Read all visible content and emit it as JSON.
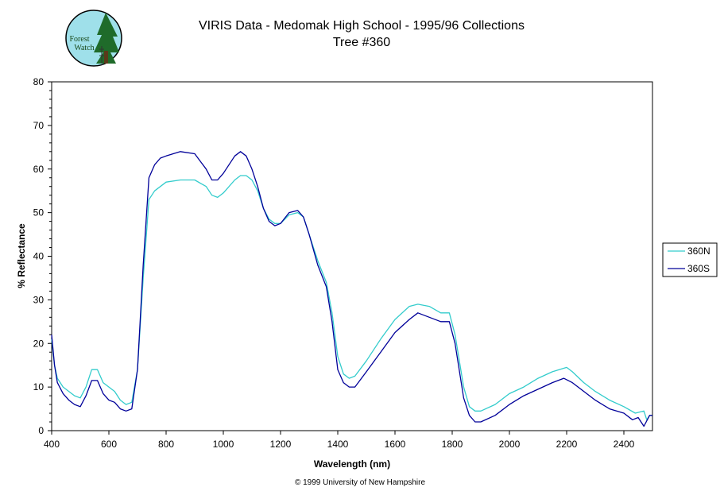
{
  "logo": {
    "text_line1": "Forest",
    "text_line2": "Watch"
  },
  "footer": {
    "copyright": "© 1999 University of New Hampshire"
  },
  "chart_data": {
    "type": "line",
    "title": "VIRIS Data - Medomak High School - 1995/96 Collections",
    "subtitle": "Tree #360",
    "xlabel": "Wavelength (nm)",
    "ylabel": "% Reflectance",
    "xlim": [
      400,
      2500
    ],
    "ylim": [
      0,
      80
    ],
    "xticks": [
      400,
      600,
      800,
      1000,
      1200,
      1400,
      1600,
      1800,
      2000,
      2200,
      2400
    ],
    "yticks": [
      0,
      10,
      20,
      30,
      40,
      50,
      60,
      70,
      80
    ],
    "grid": false,
    "legend_position": "right",
    "series": [
      {
        "name": "360N",
        "color": "#33CCCC",
        "points": [
          [
            400,
            21
          ],
          [
            410,
            15
          ],
          [
            420,
            12
          ],
          [
            440,
            10
          ],
          [
            460,
            9
          ],
          [
            480,
            8
          ],
          [
            500,
            7.5
          ],
          [
            520,
            10
          ],
          [
            540,
            14
          ],
          [
            560,
            14
          ],
          [
            580,
            11
          ],
          [
            600,
            10
          ],
          [
            620,
            9
          ],
          [
            640,
            7
          ],
          [
            660,
            6
          ],
          [
            680,
            6.5
          ],
          [
            700,
            14
          ],
          [
            720,
            35
          ],
          [
            740,
            53
          ],
          [
            760,
            55
          ],
          [
            780,
            56
          ],
          [
            800,
            57
          ],
          [
            850,
            57.5
          ],
          [
            900,
            57.5
          ],
          [
            940,
            56
          ],
          [
            960,
            54
          ],
          [
            980,
            53.5
          ],
          [
            1000,
            54.5
          ],
          [
            1040,
            57.5
          ],
          [
            1060,
            58.5
          ],
          [
            1080,
            58.5
          ],
          [
            1100,
            57.5
          ],
          [
            1120,
            55
          ],
          [
            1140,
            51
          ],
          [
            1160,
            48.5
          ],
          [
            1180,
            47.5
          ],
          [
            1200,
            47.5
          ],
          [
            1230,
            49.5
          ],
          [
            1260,
            50
          ],
          [
            1280,
            49
          ],
          [
            1300,
            45
          ],
          [
            1330,
            39
          ],
          [
            1360,
            34
          ],
          [
            1380,
            27
          ],
          [
            1400,
            17
          ],
          [
            1420,
            13
          ],
          [
            1440,
            12
          ],
          [
            1460,
            12.5
          ],
          [
            1500,
            16
          ],
          [
            1550,
            21
          ],
          [
            1600,
            25.5
          ],
          [
            1650,
            28.5
          ],
          [
            1680,
            29
          ],
          [
            1720,
            28.5
          ],
          [
            1760,
            27
          ],
          [
            1790,
            27
          ],
          [
            1810,
            22
          ],
          [
            1840,
            10
          ],
          [
            1860,
            5.5
          ],
          [
            1880,
            4.5
          ],
          [
            1900,
            4.5
          ],
          [
            1950,
            6
          ],
          [
            2000,
            8.5
          ],
          [
            2050,
            10
          ],
          [
            2100,
            12
          ],
          [
            2150,
            13.5
          ],
          [
            2200,
            14.5
          ],
          [
            2220,
            13.5
          ],
          [
            2260,
            11
          ],
          [
            2300,
            9
          ],
          [
            2350,
            7
          ],
          [
            2400,
            5.5
          ],
          [
            2440,
            4
          ],
          [
            2470,
            4.5
          ],
          [
            2480,
            2.5
          ],
          [
            2490,
            3.5
          ],
          [
            2500,
            3.5
          ]
        ]
      },
      {
        "name": "360S",
        "color": "#000099",
        "points": [
          [
            400,
            22
          ],
          [
            410,
            15
          ],
          [
            420,
            11
          ],
          [
            440,
            8.5
          ],
          [
            460,
            7
          ],
          [
            480,
            6
          ],
          [
            500,
            5.5
          ],
          [
            520,
            8
          ],
          [
            540,
            11.5
          ],
          [
            560,
            11.5
          ],
          [
            580,
            8.5
          ],
          [
            600,
            7
          ],
          [
            620,
            6.5
          ],
          [
            640,
            5
          ],
          [
            660,
            4.5
          ],
          [
            680,
            5
          ],
          [
            700,
            14
          ],
          [
            720,
            38
          ],
          [
            740,
            58
          ],
          [
            760,
            61
          ],
          [
            780,
            62.5
          ],
          [
            800,
            63
          ],
          [
            850,
            64
          ],
          [
            900,
            63.5
          ],
          [
            940,
            60
          ],
          [
            960,
            57.5
          ],
          [
            980,
            57.5
          ],
          [
            1000,
            59
          ],
          [
            1040,
            63
          ],
          [
            1060,
            64
          ],
          [
            1080,
            63
          ],
          [
            1100,
            60
          ],
          [
            1120,
            56
          ],
          [
            1140,
            51
          ],
          [
            1160,
            48
          ],
          [
            1180,
            47
          ],
          [
            1200,
            47.5
          ],
          [
            1230,
            50
          ],
          [
            1260,
            50.5
          ],
          [
            1280,
            49
          ],
          [
            1300,
            45
          ],
          [
            1330,
            38
          ],
          [
            1360,
            33
          ],
          [
            1380,
            25
          ],
          [
            1400,
            14
          ],
          [
            1420,
            11
          ],
          [
            1440,
            10
          ],
          [
            1460,
            10
          ],
          [
            1500,
            13.5
          ],
          [
            1550,
            18
          ],
          [
            1600,
            22.5
          ],
          [
            1650,
            25.5
          ],
          [
            1680,
            27
          ],
          [
            1720,
            26
          ],
          [
            1760,
            25
          ],
          [
            1790,
            25
          ],
          [
            1810,
            20
          ],
          [
            1840,
            7.5
          ],
          [
            1860,
            3.5
          ],
          [
            1880,
            2
          ],
          [
            1900,
            2
          ],
          [
            1950,
            3.5
          ],
          [
            2000,
            6
          ],
          [
            2050,
            8
          ],
          [
            2100,
            9.5
          ],
          [
            2150,
            11
          ],
          [
            2190,
            12
          ],
          [
            2220,
            11
          ],
          [
            2260,
            9
          ],
          [
            2300,
            7
          ],
          [
            2350,
            5
          ],
          [
            2400,
            4
          ],
          [
            2430,
            2.5
          ],
          [
            2450,
            3
          ],
          [
            2470,
            1
          ],
          [
            2490,
            3.5
          ],
          [
            2500,
            3.5
          ]
        ]
      }
    ]
  }
}
